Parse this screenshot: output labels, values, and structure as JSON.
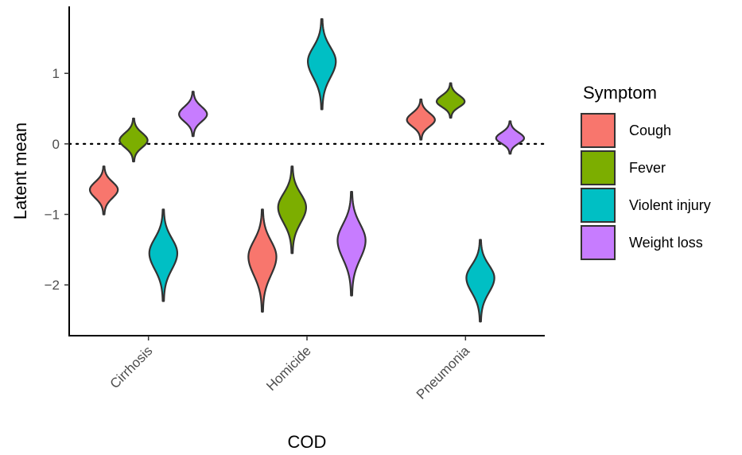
{
  "chart_data": {
    "type": "violin",
    "xlabel": "COD",
    "ylabel": "Latent mean",
    "categories": [
      "Cirrhosis",
      "Homicide",
      "Pneumonia"
    ],
    "ylim": [
      -2.72,
      1.95
    ],
    "yticks": [
      -2,
      -1,
      0,
      1
    ],
    "ytick_labels": [
      "−2",
      "−1",
      "0",
      "1"
    ],
    "reference_line": {
      "y": 0,
      "style": "dotted"
    },
    "legend": {
      "title": "Symptom",
      "position": "right"
    },
    "series": [
      {
        "name": "Cough",
        "color": "#F8766D",
        "median": [
          -0.65,
          -1.6,
          0.34
        ],
        "min": [
          -1.0,
          -2.38,
          0.06
        ],
        "max": [
          -0.32,
          -0.93,
          0.63
        ]
      },
      {
        "name": "Fever",
        "color": "#7CAE00",
        "median": [
          0.05,
          -0.9,
          0.6
        ],
        "min": [
          -0.25,
          -1.55,
          0.37
        ],
        "max": [
          0.36,
          -0.32,
          0.86
        ]
      },
      {
        "name": "Violent injury",
        "color": "#00BFC4",
        "median": [
          -1.55,
          1.17,
          -1.9
        ],
        "min": [
          -2.23,
          0.49,
          -2.52
        ],
        "max": [
          -0.93,
          1.77,
          -1.36
        ]
      },
      {
        "name": "Weight loss",
        "color": "#C77CFF",
        "median": [
          0.42,
          -1.37,
          0.08
        ],
        "min": [
          0.11,
          -2.15,
          -0.14
        ],
        "max": [
          0.74,
          -0.68,
          0.32
        ]
      }
    ]
  }
}
